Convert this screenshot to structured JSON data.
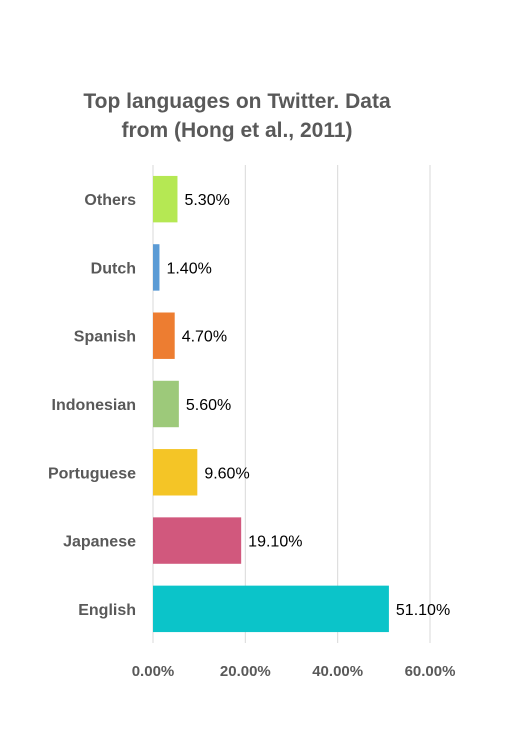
{
  "chart_data": {
    "type": "bar",
    "orientation": "horizontal",
    "title_lines": [
      "Top languages on Twitter. Data",
      "from (Hong et al., 2011)"
    ],
    "categories": [
      "Others",
      "Dutch",
      "Spanish",
      "Indonesian",
      "Portuguese",
      "Japanese",
      "English"
    ],
    "values": [
      5.3,
      1.4,
      4.7,
      5.6,
      9.6,
      19.1,
      51.1
    ],
    "data_labels": [
      "5.30%",
      "1.40%",
      "4.70%",
      "5.60%",
      "9.60%",
      "19.10%",
      "51.10%"
    ],
    "bar_colors": [
      "#b5e853",
      "#5b9bd5",
      "#ed7d31",
      "#9dc97a",
      "#f4c526",
      "#d1587d",
      "#0bc4c9"
    ],
    "xlim": [
      0,
      60
    ],
    "xticks": [
      0,
      20,
      40,
      60
    ],
    "xtick_labels": [
      "0.00%",
      "20.00%",
      "40.00%",
      "60.00%"
    ],
    "grid": "vertical",
    "legend": "none"
  }
}
